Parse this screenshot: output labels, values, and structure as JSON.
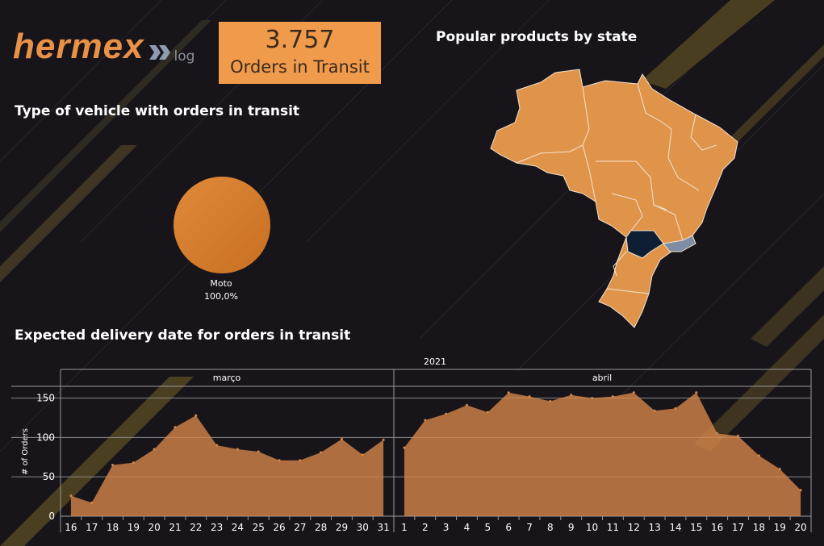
{
  "brand": {
    "name": "hermex",
    "suffix": "log",
    "primary_color": "#f09a4b",
    "accent_color": "#d98a3c"
  },
  "kpi": {
    "value": "3.757",
    "label": "Orders in Transit"
  },
  "vehicle_section": {
    "title": "Type of vehicle with orders in transit",
    "slice_label": "Moto",
    "slice_percent_label": "100,0%"
  },
  "map_section": {
    "title": "Popular products by state"
  },
  "delivery_section": {
    "title": "Expected delivery date for orders in transit"
  },
  "chart_data": {
    "type": "area",
    "title": "Expected delivery date for orders in transit",
    "ylabel": "# of Orders",
    "year_label": "2021",
    "ylim": [
      0,
      165
    ],
    "yticks": [
      0,
      50,
      100,
      150
    ],
    "grid": true,
    "series": [
      {
        "month": "março",
        "x": [
          16,
          17,
          18,
          19,
          20,
          21,
          22,
          23,
          24,
          25,
          26,
          27,
          28,
          29,
          30,
          31
        ],
        "values": [
          26,
          17,
          65,
          68,
          85,
          113,
          128,
          90,
          85,
          82,
          71,
          71,
          81,
          98,
          78,
          97
        ]
      },
      {
        "month": "abril",
        "x": [
          1,
          2,
          3,
          4,
          5,
          6,
          7,
          8,
          9,
          10,
          11,
          12,
          13,
          14,
          15,
          16,
          17,
          18,
          19,
          20
        ],
        "values": [
          87,
          122,
          130,
          141,
          132,
          157,
          152,
          146,
          154,
          150,
          152,
          157,
          134,
          137,
          157,
          105,
          102,
          77,
          60,
          33
        ]
      }
    ]
  }
}
